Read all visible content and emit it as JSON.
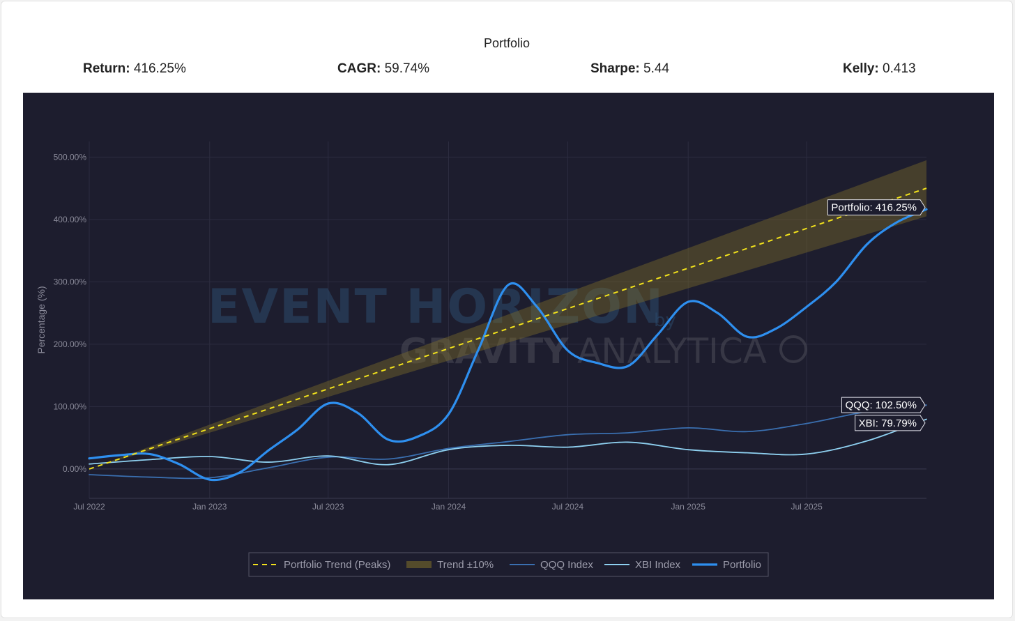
{
  "header": {
    "title": "Portfolio",
    "stats": [
      {
        "label": "Return:",
        "value": "416.25%"
      },
      {
        "label": "CAGR:",
        "value": "59.74%"
      },
      {
        "label": "Sharpe:",
        "value": "5.44"
      },
      {
        "label": "Kelly:",
        "value": "0.413"
      }
    ]
  },
  "watermark": {
    "line1": "EVENT HORIZON",
    "by": "by",
    "line2a": "GRAVITY",
    "line2b": "ANALYTICA"
  },
  "colors": {
    "background": "#1d1d2e",
    "trend": "#f2e21c",
    "band": "#7a6a2a",
    "qqq": "#3a6fb0",
    "xbi": "#8ed0f0",
    "portfolio": "#2e8fef"
  },
  "chart_data": {
    "type": "line",
    "title": "",
    "xlabel": "",
    "ylabel": "Percentage (%)",
    "ylim": [
      -47,
      525
    ],
    "x_ticks": [
      "Jul 2022",
      "Jan 2023",
      "Jul 2023",
      "Jan 2024",
      "Jul 2024",
      "Jan 2025",
      "Jul 2025"
    ],
    "y_ticks": [
      "0.00%",
      "100.00%",
      "200.00%",
      "300.00%",
      "400.00%",
      "500.00%"
    ],
    "x_range": [
      "2022-07-01",
      "2025-12-31"
    ],
    "grid": true,
    "legend_position": "bottom-center",
    "series": [
      {
        "name": "Portfolio Trend (Peaks)",
        "style": "dashed",
        "x": [
          "2022-07-01",
          "2025-12-31"
        ],
        "values": [
          0,
          450
        ]
      },
      {
        "name": "Trend ±10%",
        "style": "band",
        "x": [
          "2022-07-01",
          "2025-12-31"
        ],
        "lower": [
          0,
          405
        ],
        "upper": [
          0,
          495
        ]
      },
      {
        "name": "QQQ Index",
        "style": "line",
        "x": [
          "2022-07-01",
          "2022-10-01",
          "2023-01-01",
          "2023-04-01",
          "2023-07-01",
          "2023-10-01",
          "2024-01-01",
          "2024-04-01",
          "2024-07-01",
          "2024-10-01",
          "2025-01-01",
          "2025-04-01",
          "2025-07-01",
          "2025-10-01",
          "2025-12-31"
        ],
        "values": [
          -9,
          -13,
          -14,
          2,
          19,
          16,
          33,
          44,
          55,
          58,
          66,
          60,
          73,
          92,
          102.5
        ]
      },
      {
        "name": "XBI Index",
        "style": "line",
        "x": [
          "2022-07-01",
          "2022-10-01",
          "2023-01-01",
          "2023-04-01",
          "2023-07-01",
          "2023-10-01",
          "2024-01-01",
          "2024-04-01",
          "2024-07-01",
          "2024-10-01",
          "2025-01-01",
          "2025-04-01",
          "2025-07-01",
          "2025-10-01",
          "2025-12-31"
        ],
        "values": [
          8,
          15,
          20,
          11,
          21,
          7,
          31,
          38,
          35,
          43,
          31,
          26,
          24,
          45,
          79.79
        ]
      },
      {
        "name": "Portfolio",
        "style": "line-bold",
        "x": [
          "2022-07-01",
          "2022-08-15",
          "2022-10-01",
          "2022-11-15",
          "2023-01-01",
          "2023-02-15",
          "2023-04-01",
          "2023-05-15",
          "2023-07-01",
          "2023-08-15",
          "2023-10-01",
          "2023-11-15",
          "2024-01-01",
          "2024-02-15",
          "2024-04-01",
          "2024-05-15",
          "2024-07-01",
          "2024-08-15",
          "2024-10-01",
          "2024-11-15",
          "2025-01-01",
          "2025-02-15",
          "2025-04-01",
          "2025-05-15",
          "2025-07-01",
          "2025-08-15",
          "2025-10-01",
          "2025-11-15",
          "2025-12-31"
        ],
        "values": [
          17,
          22,
          24,
          8,
          -17,
          -6,
          30,
          63,
          105,
          90,
          47,
          52,
          88,
          190,
          295,
          260,
          190,
          170,
          165,
          215,
          268,
          250,
          212,
          225,
          260,
          300,
          360,
          395,
          416.25
        ]
      }
    ],
    "end_labels": [
      {
        "series": "Portfolio",
        "text": "Portfolio: 416.25%"
      },
      {
        "series": "QQQ Index",
        "text": "QQQ: 102.50%"
      },
      {
        "series": "XBI Index",
        "text": "XBI: 79.79%"
      }
    ]
  }
}
